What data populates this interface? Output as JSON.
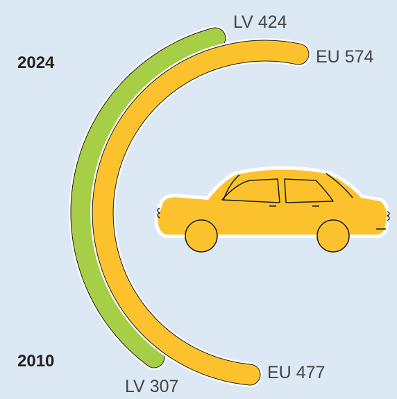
{
  "chart_data": {
    "type": "arc",
    "categories": [
      "2010",
      "2024"
    ],
    "series": [
      {
        "name": "LV",
        "color": "#a6ce47",
        "values": [
          307,
          424
        ]
      },
      {
        "name": "EU",
        "color": "#fcc22e",
        "values": [
          477,
          574
        ]
      }
    ]
  }
}
